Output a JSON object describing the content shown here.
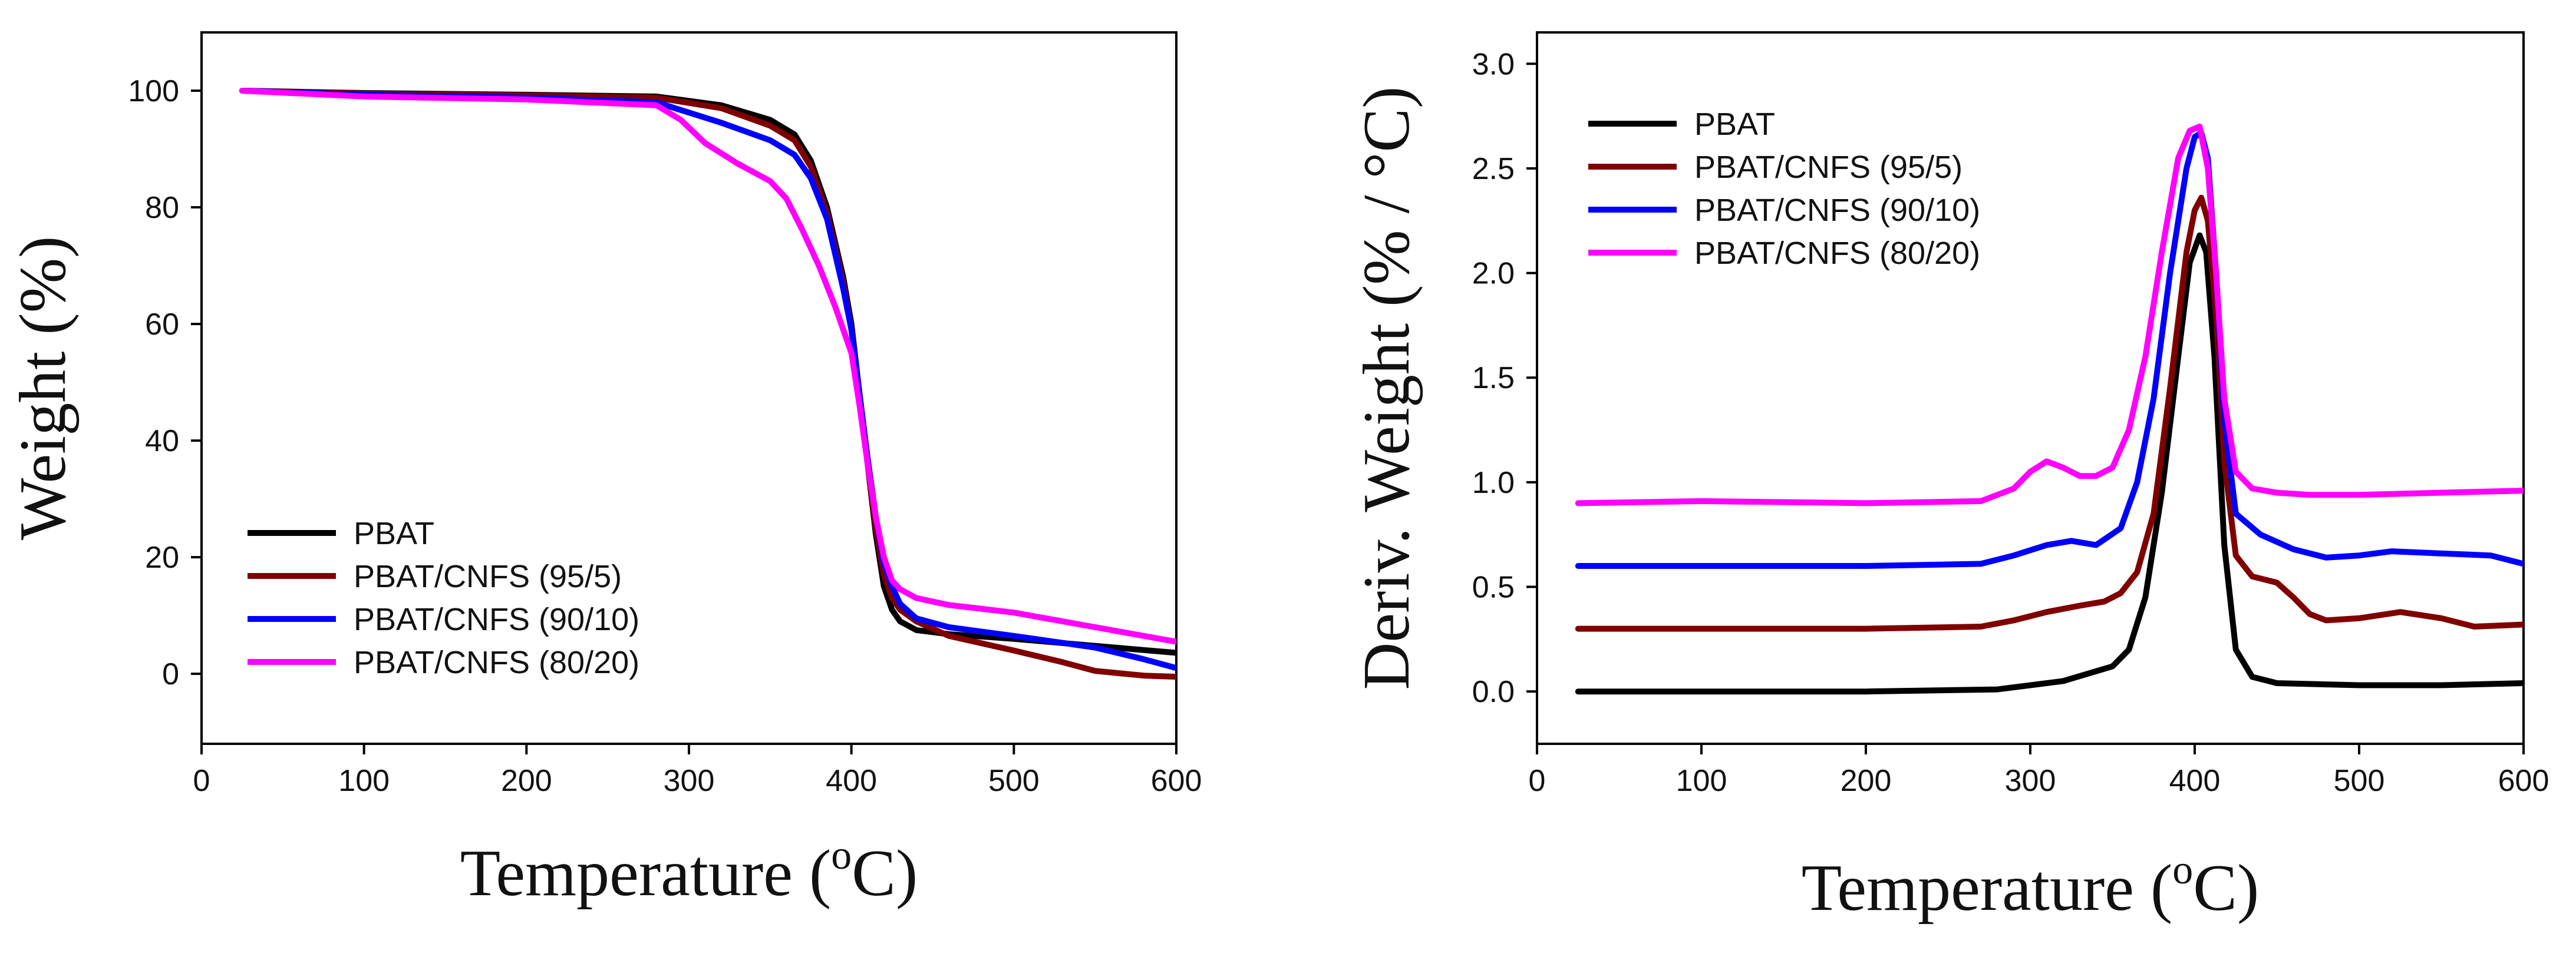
{
  "colors": {
    "PBAT": "#000000",
    "PBAT/CNFS (95/5)": "#800000",
    "PBAT/CNFS (90/10)": "#0000ff",
    "PBAT/CNFS (80/20)": "#ff00ff"
  },
  "chart_data": [
    {
      "type": "line",
      "title": "",
      "xlabel": "Temperature (°C)",
      "xlabel_main": "Temperature (",
      "xlabel_sup": "o",
      "xlabel_end": "C)",
      "ylabel": "Weight (%)",
      "xlim": [
        0,
        600
      ],
      "ylim": [
        -12,
        110
      ],
      "xticks": [
        0,
        100,
        200,
        300,
        400,
        500,
        600
      ],
      "yticks": [
        0,
        20,
        40,
        60,
        80,
        100
      ],
      "legend": "bottom-left",
      "series": [
        {
          "name": "PBAT",
          "color": "#000000",
          "x": [
            25,
            100,
            200,
            280,
            320,
            350,
            365,
            375,
            385,
            395,
            400,
            405,
            410,
            415,
            420,
            425,
            430,
            440,
            460,
            500,
            550,
            600
          ],
          "y": [
            100,
            99.6,
            99.3,
            99.0,
            97.5,
            95,
            92.5,
            88,
            80,
            68,
            60,
            48,
            36,
            24,
            15,
            11,
            9,
            7.5,
            6.8,
            6,
            4.8,
            3.6
          ]
        },
        {
          "name": "PBAT/CNFS (95/5)",
          "color": "#800000",
          "x": [
            25,
            100,
            200,
            280,
            320,
            350,
            365,
            375,
            385,
            395,
            400,
            405,
            410,
            415,
            420,
            425,
            430,
            440,
            460,
            500,
            530,
            550,
            580,
            600
          ],
          "y": [
            100,
            99.5,
            99.2,
            98.8,
            97,
            94,
            91.5,
            87,
            79,
            67,
            59,
            48,
            36,
            25,
            17,
            13,
            11,
            9,
            6.5,
            4,
            2,
            0.5,
            -0.3,
            -0.5
          ]
        },
        {
          "name": "PBAT/CNFS (90/10)",
          "color": "#0000ff",
          "x": [
            25,
            100,
            200,
            280,
            320,
            350,
            365,
            375,
            385,
            395,
            400,
            405,
            410,
            415,
            420,
            425,
            430,
            440,
            460,
            500,
            550,
            580,
            600
          ],
          "y": [
            100,
            99.3,
            98.8,
            98.0,
            94.5,
            91.5,
            89,
            85,
            78,
            66,
            59,
            48,
            37,
            27,
            19,
            15,
            12,
            9.5,
            8,
            6.5,
            4.5,
            2.5,
            1
          ]
        },
        {
          "name": "PBAT/CNFS (80/20)",
          "color": "#ff00ff",
          "x": [
            25,
            100,
            200,
            280,
            295,
            310,
            330,
            350,
            360,
            370,
            380,
            390,
            400,
            405,
            410,
            415,
            420,
            425,
            430,
            440,
            460,
            500,
            550,
            600
          ],
          "y": [
            100,
            99,
            98.5,
            97.5,
            95,
            91,
            87.5,
            84.5,
            81.5,
            76,
            70,
            63,
            55,
            46,
            36,
            27,
            20,
            16,
            14.5,
            13,
            11.8,
            10.5,
            8,
            5.5
          ]
        }
      ]
    },
    {
      "type": "line",
      "title": "",
      "xlabel": "Temperature (°C)",
      "xlabel_main": "Temperature (",
      "xlabel_sup": "o",
      "xlabel_end": "C)",
      "ylabel": "Deriv. Weight (% / °C)",
      "xlim": [
        0,
        600
      ],
      "ylim": [
        -0.25,
        3.15
      ],
      "xticks": [
        0,
        100,
        200,
        300,
        400,
        500,
        600
      ],
      "yticks": [
        0.0,
        0.5,
        1.0,
        1.5,
        2.0,
        2.5,
        3.0
      ],
      "ytick_labels": [
        "0.0",
        "0.5",
        "1.0",
        "1.5",
        "2.0",
        "2.5",
        "3.0"
      ],
      "legend": "top-left",
      "series": [
        {
          "name": "PBAT",
          "color": "#000000",
          "x": [
            25,
            100,
            200,
            280,
            320,
            350,
            360,
            370,
            380,
            390,
            397,
            403,
            407,
            412,
            418,
            425,
            435,
            450,
            500,
            550,
            600
          ],
          "y": [
            0,
            0,
            0,
            0.01,
            0.05,
            0.12,
            0.2,
            0.45,
            0.95,
            1.6,
            2.05,
            2.18,
            2.1,
            1.6,
            0.7,
            0.2,
            0.07,
            0.04,
            0.03,
            0.03,
            0.04
          ]
        },
        {
          "name": "PBAT/CNFS (95/5)",
          "color": "#800000",
          "x": [
            25,
            100,
            200,
            270,
            290,
            310,
            330,
            345,
            355,
            365,
            375,
            385,
            395,
            400,
            404,
            408,
            413,
            418,
            425,
            435,
            450,
            460,
            470,
            480,
            500,
            525,
            550,
            570,
            600
          ],
          "y": [
            0.3,
            0.3,
            0.3,
            0.31,
            0.34,
            0.38,
            0.41,
            0.43,
            0.47,
            0.57,
            0.85,
            1.45,
            2.1,
            2.3,
            2.36,
            2.25,
            1.8,
            1.1,
            0.65,
            0.55,
            0.52,
            0.45,
            0.37,
            0.34,
            0.35,
            0.38,
            0.35,
            0.31,
            0.32
          ]
        },
        {
          "name": "PBAT/CNFS (90/10)",
          "color": "#0000ff",
          "x": [
            25,
            100,
            200,
            270,
            290,
            310,
            325,
            340,
            355,
            365,
            375,
            385,
            395,
            400,
            404,
            408,
            413,
            418,
            425,
            440,
            460,
            480,
            500,
            520,
            550,
            580,
            600
          ],
          "y": [
            0.6,
            0.6,
            0.6,
            0.61,
            0.65,
            0.7,
            0.72,
            0.7,
            0.78,
            1.0,
            1.4,
            2.0,
            2.5,
            2.65,
            2.67,
            2.55,
            2.0,
            1.3,
            0.85,
            0.75,
            0.68,
            0.64,
            0.65,
            0.67,
            0.66,
            0.65,
            0.61
          ]
        },
        {
          "name": "PBAT/CNFS (80/20)",
          "color": "#ff00ff",
          "x": [
            25,
            100,
            200,
            270,
            290,
            300,
            310,
            320,
            330,
            340,
            350,
            360,
            370,
            380,
            390,
            397,
            403,
            408,
            413,
            418,
            425,
            435,
            450,
            470,
            500,
            550,
            600
          ],
          "y": [
            0.9,
            0.91,
            0.9,
            0.91,
            0.97,
            1.05,
            1.1,
            1.07,
            1.03,
            1.03,
            1.07,
            1.25,
            1.6,
            2.1,
            2.55,
            2.68,
            2.7,
            2.5,
            2.0,
            1.4,
            1.05,
            0.97,
            0.95,
            0.94,
            0.94,
            0.95,
            0.96
          ]
        }
      ]
    }
  ]
}
